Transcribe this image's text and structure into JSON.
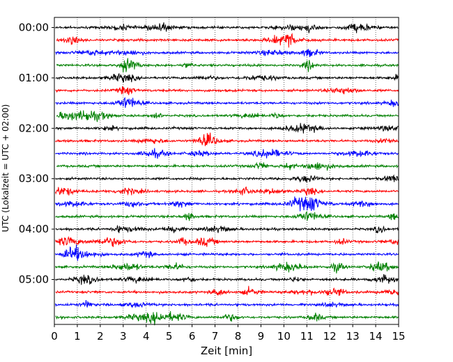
{
  "chart_data": {
    "type": "line",
    "title": "",
    "xlabel": "Zeit  [min]",
    "ylabel": "UTC (Lokalzeit = UTC + 02:00)",
    "xlim": [
      0,
      15
    ],
    "x_ticks": [
      "0",
      "1",
      "2",
      "3",
      "4",
      "5",
      "6",
      "7",
      "8",
      "9",
      "10",
      "11",
      "12",
      "13",
      "14",
      "15"
    ],
    "y_ticks": [
      {
        "label": "00:00",
        "trace": 0
      },
      {
        "label": "01:00",
        "trace": 4
      },
      {
        "label": "02:00",
        "trace": 8
      },
      {
        "label": "03:00",
        "trace": 12
      },
      {
        "label": "04:00",
        "trace": 16
      },
      {
        "label": "05:00",
        "trace": 20
      }
    ],
    "trace_interval_min": 15,
    "trace_count": 24,
    "trace_colors": [
      "#000000",
      "#ff0000",
      "#0000ff",
      "#008000"
    ],
    "grid": "x-dotted",
    "legend": "none"
  }
}
